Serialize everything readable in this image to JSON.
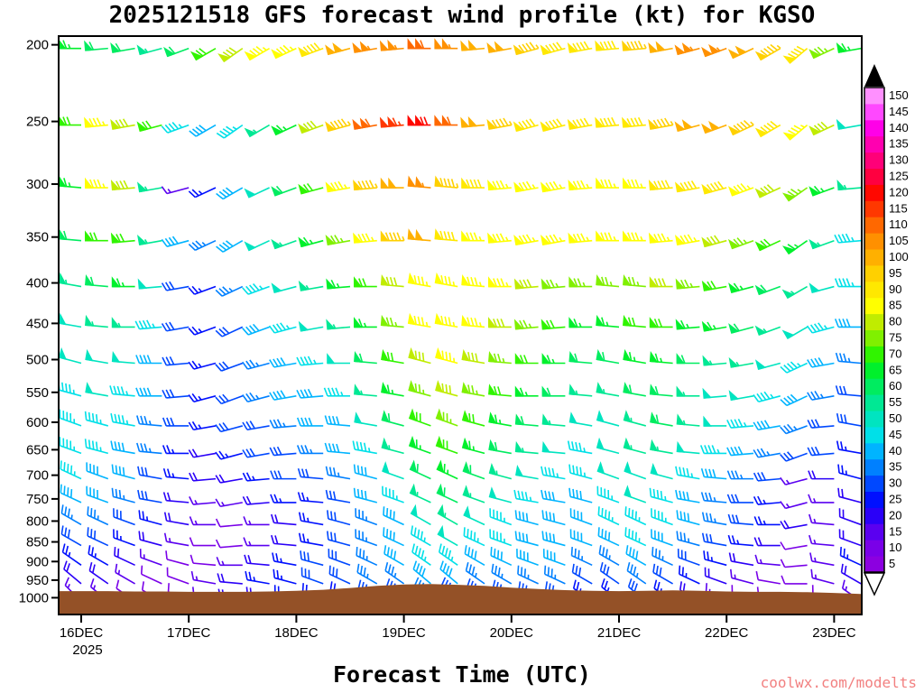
{
  "watermark": "coolwx.com/modelts",
  "chart_data": {
    "type": "wind-barb-time-height",
    "title": "2025121518 GFS forecast wind profile (kt) for KGSO",
    "x_axis_title": "Forecast Time (UTC)",
    "year_label": "2025",
    "x_tick_labels": [
      "16DEC",
      "17DEC",
      "18DEC",
      "19DEC",
      "20DEC",
      "21DEC",
      "22DEC",
      "23DEC"
    ],
    "y_tick_labels": [
      "200",
      "250",
      "300",
      "350",
      "400",
      "450",
      "500",
      "550",
      "600",
      "650",
      "700",
      "750",
      "800",
      "850",
      "900",
      "950",
      "1000"
    ],
    "levels_hpa": [
      200,
      250,
      300,
      350,
      400,
      450,
      500,
      550,
      600,
      650,
      700,
      750,
      800,
      850,
      900,
      950,
      1000
    ],
    "time_step_hours": 6,
    "speed_units": "kt",
    "speeds_kt": [
      [
        65,
        60,
        60,
        55,
        60,
        70,
        80,
        85,
        85,
        90,
        100,
        105,
        105,
        110,
        105,
        100,
        100,
        95,
        90,
        90,
        90,
        95,
        100,
        105,
        105,
        100,
        95,
        90,
        75,
        65
      ],
      [
        70,
        85,
        80,
        70,
        45,
        40,
        45,
        55,
        65,
        80,
        95,
        110,
        115,
        120,
        110,
        100,
        95,
        90,
        90,
        90,
        90,
        90,
        95,
        100,
        100,
        95,
        90,
        85,
        80,
        50
      ],
      [
        65,
        85,
        80,
        55,
        15,
        25,
        40,
        50,
        60,
        70,
        85,
        95,
        100,
        105,
        95,
        90,
        85,
        85,
        85,
        85,
        85,
        85,
        90,
        90,
        90,
        85,
        80,
        75,
        65,
        55
      ],
      [
        60,
        70,
        70,
        55,
        40,
        35,
        40,
        50,
        55,
        65,
        75,
        85,
        95,
        100,
        90,
        85,
        85,
        85,
        85,
        85,
        85,
        85,
        85,
        85,
        80,
        75,
        70,
        65,
        55,
        45
      ],
      [
        55,
        60,
        65,
        50,
        30,
        25,
        35,
        45,
        50,
        55,
        65,
        70,
        80,
        85,
        85,
        85,
        85,
        80,
        75,
        75,
        75,
        75,
        80,
        75,
        70,
        65,
        60,
        55,
        50,
        45
      ],
      [
        50,
        55,
        55,
        45,
        30,
        25,
        30,
        40,
        45,
        50,
        55,
        65,
        75,
        85,
        85,
        85,
        80,
        75,
        70,
        65,
        65,
        70,
        70,
        65,
        65,
        60,
        55,
        50,
        45,
        40
      ],
      [
        50,
        50,
        50,
        40,
        30,
        25,
        30,
        35,
        40,
        45,
        50,
        60,
        70,
        80,
        85,
        80,
        75,
        70,
        65,
        60,
        60,
        65,
        65,
        60,
        55,
        55,
        50,
        45,
        40,
        35
      ],
      [
        45,
        50,
        45,
        40,
        30,
        25,
        30,
        35,
        40,
        40,
        45,
        55,
        65,
        75,
        80,
        75,
        70,
        65,
        60,
        55,
        55,
        60,
        60,
        55,
        50,
        50,
        45,
        40,
        35,
        30
      ],
      [
        45,
        45,
        45,
        35,
        30,
        25,
        30,
        30,
        35,
        40,
        40,
        50,
        60,
        70,
        75,
        70,
        65,
        60,
        55,
        50,
        50,
        55,
        60,
        55,
        50,
        45,
        40,
        35,
        30,
        30
      ],
      [
        45,
        45,
        40,
        35,
        25,
        20,
        25,
        30,
        30,
        35,
        40,
        45,
        55,
        65,
        70,
        65,
        60,
        55,
        50,
        45,
        50,
        55,
        55,
        50,
        45,
        40,
        35,
        30,
        30,
        25
      ],
      [
        45,
        40,
        40,
        30,
        25,
        20,
        20,
        25,
        30,
        30,
        35,
        40,
        50,
        60,
        65,
        60,
        55,
        50,
        45,
        45,
        50,
        50,
        50,
        45,
        40,
        35,
        30,
        15,
        20,
        25
      ],
      [
        40,
        40,
        35,
        30,
        20,
        15,
        15,
        20,
        25,
        25,
        30,
        40,
        45,
        55,
        60,
        55,
        50,
        45,
        40,
        40,
        45,
        50,
        45,
        40,
        35,
        30,
        25,
        15,
        15,
        20
      ],
      [
        35,
        35,
        30,
        25,
        20,
        15,
        10,
        15,
        20,
        25,
        30,
        35,
        40,
        50,
        55,
        50,
        45,
        40,
        40,
        40,
        45,
        45,
        45,
        40,
        35,
        30,
        25,
        20,
        15,
        20
      ],
      [
        30,
        30,
        25,
        20,
        15,
        10,
        10,
        15,
        20,
        25,
        30,
        35,
        40,
        45,
        50,
        45,
        45,
        40,
        40,
        40,
        40,
        45,
        40,
        35,
        30,
        25,
        20,
        10,
        15,
        20
      ],
      [
        25,
        25,
        20,
        15,
        10,
        10,
        15,
        20,
        25,
        30,
        30,
        35,
        40,
        45,
        45,
        40,
        40,
        40,
        40,
        35,
        35,
        40,
        35,
        30,
        25,
        20,
        15,
        10,
        15,
        25
      ],
      [
        20,
        20,
        15,
        10,
        10,
        15,
        20,
        25,
        25,
        30,
        30,
        35,
        35,
        40,
        40,
        35,
        35,
        35,
        35,
        30,
        30,
        35,
        30,
        25,
        20,
        15,
        10,
        10,
        15,
        20
      ],
      [
        15,
        15,
        10,
        10,
        10,
        15,
        20,
        20,
        25,
        25,
        25,
        30,
        30,
        35,
        30,
        30,
        30,
        30,
        30,
        25,
        25,
        30,
        25,
        20,
        15,
        10,
        10,
        5,
        10,
        15
      ]
    ],
    "wind_dir_from_deg_base": [
      260,
      260,
      265,
      265,
      270,
      270,
      275,
      275,
      280,
      280,
      285,
      285,
      290,
      290,
      295,
      300,
      305
    ],
    "wind_dir_offset_deg": [
      10,
      5,
      0,
      -5,
      -10,
      -20,
      -25,
      -20,
      -15,
      -10,
      -5,
      0,
      5,
      10,
      10,
      5,
      0,
      -5,
      -5,
      0,
      5,
      5,
      0,
      -5,
      -10,
      -15,
      -20,
      -30,
      -15,
      0
    ],
    "terrain": {
      "color": "#945127",
      "surface_pressure_hpa": [
        981,
        981,
        982,
        982,
        983,
        983,
        983,
        982,
        980,
        977,
        972,
        966,
        962,
        961,
        963,
        966,
        971,
        975,
        978,
        980,
        981,
        980,
        979,
        980,
        982,
        983,
        983,
        984,
        986,
        989
      ]
    },
    "colorbar": {
      "unit": "kt",
      "values": [
        5,
        10,
        15,
        20,
        25,
        30,
        35,
        40,
        45,
        50,
        55,
        60,
        65,
        70,
        75,
        80,
        85,
        90,
        95,
        100,
        105,
        110,
        115,
        120,
        125,
        130,
        135,
        140,
        145,
        150
      ],
      "colors": [
        "#8c00e0",
        "#7a00e8",
        "#5a00f0",
        "#2a00f8",
        "#0010ff",
        "#0048ff",
        "#0080ff",
        "#00b4ff",
        "#00e0e8",
        "#00e4c0",
        "#00e894",
        "#00ec60",
        "#00f02c",
        "#30f400",
        "#80f000",
        "#c0ec00",
        "#ffff00",
        "#ffe800",
        "#ffd000",
        "#ffb000",
        "#ff9000",
        "#ff6800",
        "#ff3800",
        "#ff0800",
        "#ff0040",
        "#ff0078",
        "#ff00b0",
        "#ff00e8",
        "#ff48ff",
        "#ff90ff"
      ],
      "over_color": "#000000",
      "under_color": "#ffffff"
    }
  }
}
